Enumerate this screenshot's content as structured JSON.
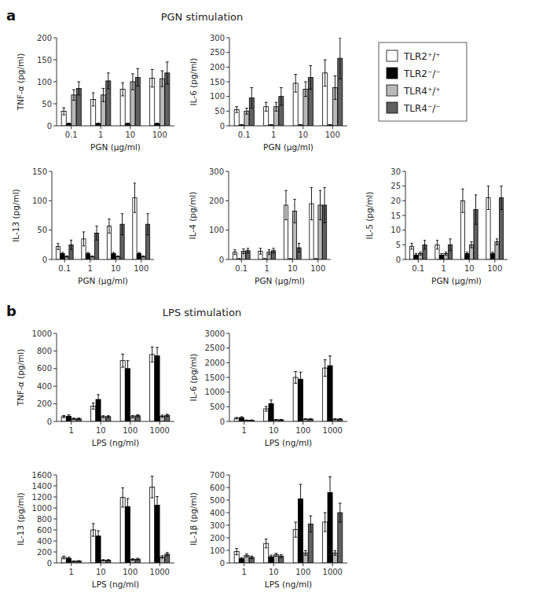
{
  "chart_data": [
    {
      "type": "bar",
      "title": "PGN stimulation",
      "annotations": [
        {
          "text": "a"
        }
      ],
      "x_label": "PGN (μg/ml)",
      "y_label": "TNF-α (pg/ml)",
      "categories": [
        "0.1",
        "1",
        "10",
        "100"
      ],
      "series": [
        {
          "color": "white",
          "values": [
            33,
            60,
            83,
            108
          ],
          "errors": [
            8,
            15,
            15,
            20
          ]
        },
        {
          "color": "black",
          "values": [
            5,
            5,
            5,
            5
          ],
          "errors": [
            1,
            1,
            1,
            1
          ]
        },
        {
          "color": "#b8b8b8",
          "values": [
            70,
            70,
            100,
            107
          ],
          "errors": [
            12,
            15,
            18,
            18
          ]
        },
        {
          "color": "#606060",
          "values": [
            85,
            102,
            110,
            120
          ],
          "errors": [
            15,
            18,
            20,
            25
          ]
        }
      ],
      "ylim": [
        0,
        200
      ],
      "yticks": [
        0,
        50,
        100,
        150,
        200
      ],
      "grid": false
    },
    {
      "type": "bar",
      "legend": "right",
      "x_label": "PGN (μg/ml)",
      "y_label": "IL-6 (pg/ml)",
      "categories": [
        "0.1",
        "1",
        "10",
        "100"
      ],
      "series": [
        {
          "name": "TLR2⁺/⁺",
          "color": "white",
          "values": [
            55,
            65,
            145,
            180
          ],
          "errors": [
            10,
            15,
            30,
            45
          ]
        },
        {
          "name": "TLR2⁻/⁻",
          "color": "black",
          "values": [
            3,
            3,
            3,
            3
          ],
          "errors": [
            1,
            1,
            1,
            1
          ]
        },
        {
          "name": "TLR4⁺/⁺",
          "color": "#b8b8b8",
          "values": [
            50,
            65,
            125,
            130
          ],
          "errors": [
            10,
            15,
            25,
            40
          ]
        },
        {
          "name": "TLR4⁻/⁻",
          "color": "#606060",
          "values": [
            95,
            100,
            165,
            230
          ],
          "errors": [
            35,
            30,
            40,
            70
          ]
        }
      ],
      "ylim": [
        0,
        300
      ],
      "yticks": [
        0,
        50,
        100,
        150,
        200,
        250,
        300
      ],
      "grid": false
    },
    {
      "type": "bar",
      "x_label": "PGN (μg/ml)",
      "y_label": "IL-13 (pg/ml)",
      "categories": [
        "0.1",
        "1",
        "10",
        "100"
      ],
      "series": [
        {
          "color": "white",
          "values": [
            22,
            35,
            57,
            105
          ],
          "errors": [
            5,
            12,
            12,
            25
          ]
        },
        {
          "color": "black",
          "values": [
            10,
            10,
            10,
            10
          ],
          "errors": [
            2,
            2,
            2,
            2
          ]
        },
        {
          "color": "#b8b8b8",
          "values": [
            5,
            5,
            5,
            5
          ],
          "errors": [
            1,
            1,
            1,
            1
          ]
        },
        {
          "color": "#606060",
          "values": [
            25,
            45,
            60,
            60
          ],
          "errors": [
            8,
            12,
            18,
            18
          ]
        }
      ],
      "ylim": [
        0,
        150
      ],
      "yticks": [
        0,
        50,
        100,
        150
      ],
      "grid": false
    },
    {
      "type": "bar",
      "x_label": "PGN (μg/ml)",
      "y_label": "IL-4 (pg/ml)",
      "categories": [
        "0.1",
        "1",
        "10",
        "100"
      ],
      "series": [
        {
          "color": "white",
          "values": [
            25,
            28,
            185,
            190
          ],
          "errors": [
            8,
            10,
            50,
            55
          ]
        },
        {
          "color": "black",
          "values": [
            2,
            2,
            2,
            2
          ],
          "errors": [
            1,
            1,
            1,
            1
          ]
        },
        {
          "color": "#b8b8b8",
          "values": [
            28,
            25,
            165,
            185
          ],
          "errors": [
            8,
            8,
            40,
            50
          ]
        },
        {
          "color": "#606060",
          "values": [
            30,
            30,
            40,
            185
          ],
          "errors": [
            8,
            8,
            15,
            60
          ]
        }
      ],
      "ylim": [
        0,
        300
      ],
      "yticks": [
        0,
        100,
        200,
        300
      ],
      "grid": false
    },
    {
      "type": "bar",
      "x_label": "PGN (μg/ml)",
      "y_label": "IL-5 (pg/ml)",
      "categories": [
        "0.1",
        "1",
        "10",
        "100"
      ],
      "series": [
        {
          "color": "white",
          "values": [
            4.5,
            5,
            20,
            21
          ],
          "errors": [
            1,
            1.5,
            4,
            4
          ]
        },
        {
          "color": "black",
          "values": [
            1.5,
            1.5,
            2,
            2
          ],
          "errors": [
            0.5,
            0.5,
            0.5,
            0.5
          ]
        },
        {
          "color": "#b8b8b8",
          "values": [
            2,
            2,
            5,
            6
          ],
          "errors": [
            0.5,
            0.5,
            1,
            1
          ]
        },
        {
          "color": "#606060",
          "values": [
            5,
            5,
            17,
            21
          ],
          "errors": [
            1.5,
            2,
            5,
            4
          ]
        }
      ],
      "ylim": [
        0,
        30
      ],
      "yticks": [
        0,
        5,
        10,
        15,
        20,
        25,
        30
      ],
      "grid": false
    },
    {
      "type": "bar",
      "title": "LPS stimulation",
      "annotations": [
        {
          "text": "b"
        }
      ],
      "x_label": "LPS (ng/ml)",
      "y_label": "TNF-α (pg/ml)",
      "categories": [
        "1",
        "10",
        "100",
        "1000"
      ],
      "series": [
        {
          "color": "white",
          "values": [
            55,
            175,
            690,
            760
          ],
          "errors": [
            12,
            35,
            75,
            85
          ]
        },
        {
          "color": "black",
          "values": [
            60,
            250,
            600,
            745
          ],
          "errors": [
            15,
            55,
            90,
            95
          ]
        },
        {
          "color": "#b8b8b8",
          "values": [
            30,
            55,
            55,
            60
          ],
          "errors": [
            8,
            10,
            12,
            12
          ]
        },
        {
          "color": "#606060",
          "values": [
            30,
            55,
            65,
            70
          ],
          "errors": [
            8,
            10,
            12,
            12
          ]
        }
      ],
      "ylim": [
        0,
        1000
      ],
      "yticks": [
        0,
        200,
        400,
        600,
        800,
        1000
      ],
      "grid": false
    },
    {
      "type": "bar",
      "x_label": "LPS (ng/ml)",
      "y_label": "IL-6 (pg/ml)",
      "categories": [
        "1",
        "10",
        "100",
        "1000"
      ],
      "series": [
        {
          "color": "white",
          "values": [
            110,
            430,
            1500,
            1820
          ],
          "errors": [
            25,
            80,
            200,
            280
          ]
        },
        {
          "color": "black",
          "values": [
            130,
            610,
            1440,
            1900
          ],
          "errors": [
            30,
            120,
            240,
            330
          ]
        },
        {
          "color": "#b8b8b8",
          "values": [
            40,
            55,
            80,
            75
          ],
          "errors": [
            8,
            12,
            15,
            18
          ]
        },
        {
          "color": "#606060",
          "values": [
            40,
            55,
            80,
            80
          ],
          "errors": [
            8,
            12,
            15,
            18
          ]
        }
      ],
      "ylim": [
        0,
        3000
      ],
      "yticks": [
        0,
        500,
        1000,
        1500,
        2000,
        2500,
        3000
      ],
      "grid": false
    },
    {
      "type": "bar",
      "x_label": "LPS (ng/ml)",
      "y_label": "IL-13 (pg/ml)",
      "categories": [
        "1",
        "10",
        "100",
        "1000"
      ],
      "series": [
        {
          "color": "white",
          "values": [
            100,
            600,
            1190,
            1380
          ],
          "errors": [
            25,
            115,
            175,
            195
          ]
        },
        {
          "color": "black",
          "values": [
            85,
            490,
            1025,
            1050
          ],
          "errors": [
            20,
            95,
            145,
            155
          ]
        },
        {
          "color": "#b8b8b8",
          "values": [
            30,
            50,
            65,
            110
          ],
          "errors": [
            8,
            10,
            15,
            22
          ]
        },
        {
          "color": "#606060",
          "values": [
            35,
            50,
            70,
            160
          ],
          "errors": [
            8,
            10,
            15,
            30
          ]
        }
      ],
      "ylim": [
        0,
        1600
      ],
      "yticks": [
        0,
        200,
        400,
        600,
        800,
        1000,
        1200,
        1400,
        1600
      ],
      "grid": false
    },
    {
      "type": "bar",
      "x_label": "LPS (ng/ml)",
      "y_label": "IL-1β (pg/ml)",
      "categories": [
        "1",
        "10",
        "100",
        "1000"
      ],
      "series": [
        {
          "color": "white",
          "values": [
            90,
            155,
            265,
            325
          ],
          "errors": [
            25,
            35,
            60,
            75
          ]
        },
        {
          "color": "black",
          "values": [
            35,
            50,
            510,
            560
          ],
          "errors": [
            8,
            12,
            115,
            125
          ]
        },
        {
          "color": "#b8b8b8",
          "values": [
            60,
            65,
            80,
            80
          ],
          "errors": [
            12,
            12,
            18,
            18
          ]
        },
        {
          "color": "#606060",
          "values": [
            45,
            55,
            310,
            400
          ],
          "errors": [
            10,
            12,
            65,
            75
          ]
        }
      ],
      "ylim": [
        0,
        700
      ],
      "yticks": [
        0,
        100,
        200,
        300,
        400,
        500,
        600,
        700
      ],
      "grid": false
    }
  ]
}
